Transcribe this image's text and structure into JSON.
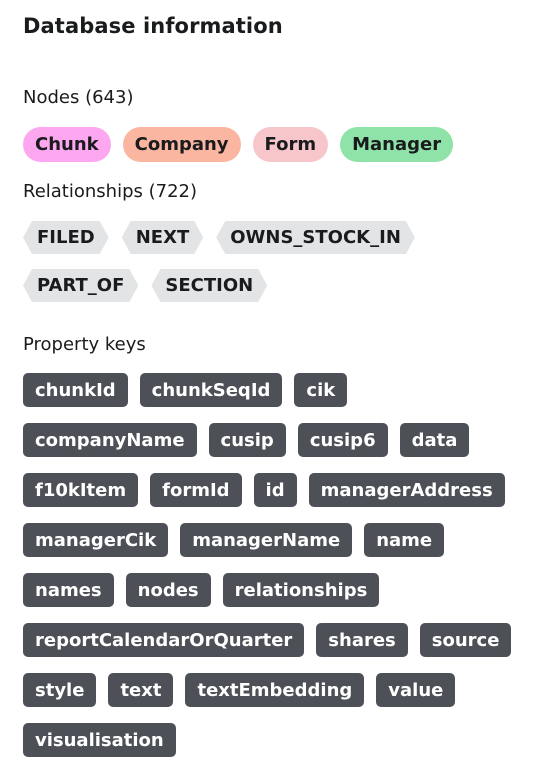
{
  "panel": {
    "title": "Database information"
  },
  "nodes": {
    "label": "Nodes (643)",
    "items": [
      {
        "label": "Chunk",
        "color": "#fda7f0"
      },
      {
        "label": "Company",
        "color": "#fbb6a2"
      },
      {
        "label": "Form",
        "color": "#f6c6cb"
      },
      {
        "label": "Manager",
        "color": "#8fe3a8"
      }
    ]
  },
  "relationships": {
    "label": "Relationships (722)",
    "items": [
      {
        "label": "FILED"
      },
      {
        "label": "NEXT"
      },
      {
        "label": "OWNS_STOCK_IN"
      },
      {
        "label": "PART_OF"
      },
      {
        "label": "SECTION"
      }
    ]
  },
  "property_keys": {
    "label": "Property keys",
    "items": [
      "chunkId",
      "chunkSeqId",
      "cik",
      "companyName",
      "cusip",
      "cusip6",
      "data",
      "f10kItem",
      "formId",
      "id",
      "managerAddress",
      "managerCik",
      "managerName",
      "name",
      "names",
      "nodes",
      "relationships",
      "reportCalendarOrQuarter",
      "shares",
      "source",
      "style",
      "text",
      "textEmbedding",
      "value",
      "visualisation"
    ]
  }
}
